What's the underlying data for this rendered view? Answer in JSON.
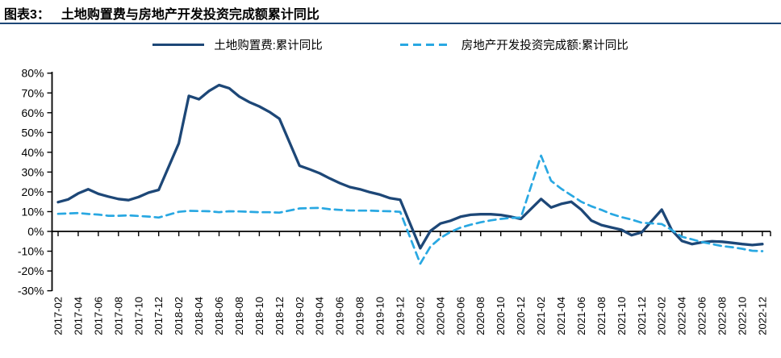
{
  "header": {
    "label": "图表3：",
    "title": "土地购置费与房地产开发投资完成额累计同比"
  },
  "theme": {
    "navy": "#1d4777",
    "light_blue": "#29a8e2",
    "axis_color": "#000000",
    "background": "#ffffff"
  },
  "legend": [
    {
      "name": "土地购置费:累计同比",
      "style": "solid",
      "color": "#1d4777"
    },
    {
      "name": "房地产开发投资完成额:累计同比",
      "style": "dashed",
      "color": "#29a8e2"
    }
  ],
  "chart_data": {
    "type": "line",
    "title": "土地购置费与房地产开发投资完成额累计同比",
    "xlabel": "",
    "ylabel": "",
    "grid": false,
    "legend_position": "top",
    "ylim": [
      -30,
      80
    ],
    "y_ticks": [
      80,
      70,
      60,
      50,
      40,
      30,
      20,
      10,
      0,
      -10,
      -20,
      -30
    ],
    "y_tick_suffix": "%",
    "x_tick_labels": [
      "2017-02",
      "2017-04",
      "2017-06",
      "2017-08",
      "2017-10",
      "2017-12",
      "2018-02",
      "2018-04",
      "2018-06",
      "2018-08",
      "2018-10",
      "2018-12",
      "2019-02",
      "2019-04",
      "2019-06",
      "2019-08",
      "2019-10",
      "2019-12",
      "2020-02",
      "2020-04",
      "2020-06",
      "2020-08",
      "2020-10",
      "2020-12",
      "2021-02",
      "2021-04",
      "2021-06",
      "2021-08",
      "2021-10",
      "2021-12",
      "2022-02",
      "2022-04",
      "2022-06",
      "2022-08",
      "2022-10",
      "2022-12"
    ],
    "series": [
      {
        "name": "土地购置费:累计同比",
        "color": "#1d4777",
        "dash": false,
        "points": [
          [
            "2017-02",
            14.8
          ],
          [
            "2017-03",
            16.2
          ],
          [
            "2017-04",
            19.2
          ],
          [
            "2017-05",
            21.3
          ],
          [
            "2017-06",
            19.0
          ],
          [
            "2017-07",
            17.6
          ],
          [
            "2017-08",
            16.4
          ],
          [
            "2017-09",
            15.8
          ],
          [
            "2017-10",
            17.4
          ],
          [
            "2017-11",
            19.6
          ],
          [
            "2017-12",
            21.0
          ],
          [
            "2018-02",
            44.5
          ],
          [
            "2018-03",
            68.5
          ],
          [
            "2018-04",
            66.8
          ],
          [
            "2018-05",
            71.0
          ],
          [
            "2018-06",
            74.0
          ],
          [
            "2018-07",
            72.4
          ],
          [
            "2018-08",
            68.2
          ],
          [
            "2018-09",
            65.4
          ],
          [
            "2018-10",
            63.2
          ],
          [
            "2018-11",
            60.4
          ],
          [
            "2018-12",
            57.0
          ],
          [
            "2019-02",
            33.2
          ],
          [
            "2019-03",
            31.4
          ],
          [
            "2019-04",
            29.4
          ],
          [
            "2019-05",
            26.8
          ],
          [
            "2019-06",
            24.4
          ],
          [
            "2019-07",
            22.4
          ],
          [
            "2019-08",
            21.3
          ],
          [
            "2019-09",
            19.8
          ],
          [
            "2019-10",
            18.6
          ],
          [
            "2019-11",
            16.8
          ],
          [
            "2019-12",
            16.0
          ],
          [
            "2020-02",
            -8.5
          ],
          [
            "2020-03",
            0.2
          ],
          [
            "2020-04",
            4.0
          ],
          [
            "2020-05",
            5.4
          ],
          [
            "2020-06",
            7.4
          ],
          [
            "2020-07",
            8.4
          ],
          [
            "2020-08",
            8.7
          ],
          [
            "2020-09",
            8.7
          ],
          [
            "2020-10",
            8.3
          ],
          [
            "2020-11",
            7.4
          ],
          [
            "2020-12",
            6.3
          ],
          [
            "2021-02",
            16.4
          ],
          [
            "2021-03",
            12.1
          ],
          [
            "2021-04",
            13.9
          ],
          [
            "2021-05",
            15.0
          ],
          [
            "2021-06",
            11.0
          ],
          [
            "2021-07",
            5.5
          ],
          [
            "2021-08",
            3.2
          ],
          [
            "2021-09",
            2.0
          ],
          [
            "2021-10",
            0.8
          ],
          [
            "2021-11",
            -1.9
          ],
          [
            "2021-12",
            -0.5
          ],
          [
            "2022-02",
            11.0
          ],
          [
            "2022-03",
            0.6
          ],
          [
            "2022-04",
            -4.8
          ],
          [
            "2022-05",
            -6.4
          ],
          [
            "2022-06",
            -5.5
          ],
          [
            "2022-07",
            -5.0
          ],
          [
            "2022-08",
            -5.2
          ],
          [
            "2022-09",
            -5.8
          ],
          [
            "2022-10",
            -6.4
          ],
          [
            "2022-11",
            -6.9
          ],
          [
            "2022-12",
            -6.4
          ]
        ]
      },
      {
        "name": "房地产开发投资完成额:累计同比",
        "color": "#29a8e2",
        "dash": true,
        "points": [
          [
            "2017-02",
            8.9
          ],
          [
            "2017-03",
            9.1
          ],
          [
            "2017-04",
            9.3
          ],
          [
            "2017-05",
            8.8
          ],
          [
            "2017-06",
            8.5
          ],
          [
            "2017-07",
            7.9
          ],
          [
            "2017-08",
            7.9
          ],
          [
            "2017-09",
            8.1
          ],
          [
            "2017-10",
            7.8
          ],
          [
            "2017-11",
            7.5
          ],
          [
            "2017-12",
            7.0
          ],
          [
            "2018-02",
            9.9
          ],
          [
            "2018-03",
            10.4
          ],
          [
            "2018-04",
            10.3
          ],
          [
            "2018-05",
            10.2
          ],
          [
            "2018-06",
            9.7
          ],
          [
            "2018-07",
            10.2
          ],
          [
            "2018-08",
            10.1
          ],
          [
            "2018-09",
            9.9
          ],
          [
            "2018-10",
            9.7
          ],
          [
            "2018-11",
            9.7
          ],
          [
            "2018-12",
            9.5
          ],
          [
            "2019-02",
            11.6
          ],
          [
            "2019-03",
            11.8
          ],
          [
            "2019-04",
            11.9
          ],
          [
            "2019-05",
            11.2
          ],
          [
            "2019-06",
            10.9
          ],
          [
            "2019-07",
            10.6
          ],
          [
            "2019-08",
            10.5
          ],
          [
            "2019-09",
            10.5
          ],
          [
            "2019-10",
            10.3
          ],
          [
            "2019-11",
            10.2
          ],
          [
            "2019-12",
            9.9
          ],
          [
            "2020-02",
            -16.3
          ],
          [
            "2020-03",
            -7.7
          ],
          [
            "2020-04",
            -3.3
          ],
          [
            "2020-05",
            -0.3
          ],
          [
            "2020-06",
            1.9
          ],
          [
            "2020-07",
            3.4
          ],
          [
            "2020-08",
            4.6
          ],
          [
            "2020-09",
            5.6
          ],
          [
            "2020-10",
            6.3
          ],
          [
            "2020-11",
            6.8
          ],
          [
            "2020-12",
            7.0
          ],
          [
            "2021-02",
            38.3
          ],
          [
            "2021-03",
            25.6
          ],
          [
            "2021-04",
            21.6
          ],
          [
            "2021-05",
            18.3
          ],
          [
            "2021-06",
            15.0
          ],
          [
            "2021-07",
            12.7
          ],
          [
            "2021-08",
            10.9
          ],
          [
            "2021-09",
            8.8
          ],
          [
            "2021-10",
            7.2
          ],
          [
            "2021-11",
            6.0
          ],
          [
            "2021-12",
            4.4
          ],
          [
            "2022-02",
            3.7
          ],
          [
            "2022-03",
            0.7
          ],
          [
            "2022-04",
            -2.7
          ],
          [
            "2022-05",
            -4.0
          ],
          [
            "2022-06",
            -5.4
          ],
          [
            "2022-07",
            -6.4
          ],
          [
            "2022-08",
            -7.4
          ],
          [
            "2022-09",
            -8.0
          ],
          [
            "2022-10",
            -8.8
          ],
          [
            "2022-11",
            -9.8
          ],
          [
            "2022-12",
            -10.0
          ]
        ]
      }
    ]
  }
}
